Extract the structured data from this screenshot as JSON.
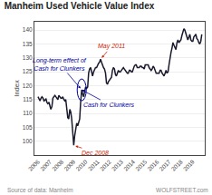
{
  "chart_data": {
    "type": "line",
    "title": "Manheim Used Vehicle Value Index",
    "ylabel": "Index",
    "color": "#1a1a2e",
    "grid": true,
    "xlim": [
      2005.7,
      2020.0
    ],
    "xticks": [
      2006,
      2007,
      2008,
      2009,
      2010,
      2011,
      2012,
      2013,
      2014,
      2015,
      2016,
      2017,
      2018,
      2019
    ],
    "ylim": [
      95,
      143
    ],
    "yticks": [
      100,
      105,
      110,
      115,
      120,
      125,
      130,
      135,
      140
    ],
    "x": [
      2006.0,
      2006.08,
      2006.17,
      2006.25,
      2006.33,
      2006.42,
      2006.5,
      2006.58,
      2006.67,
      2006.75,
      2006.83,
      2006.92,
      2007.0,
      2007.08,
      2007.17,
      2007.25,
      2007.33,
      2007.42,
      2007.5,
      2007.58,
      2007.67,
      2007.75,
      2007.83,
      2007.92,
      2008.0,
      2008.08,
      2008.17,
      2008.25,
      2008.33,
      2008.42,
      2008.5,
      2008.58,
      2008.67,
      2008.75,
      2008.83,
      2008.92,
      2009.0,
      2009.08,
      2009.17,
      2009.25,
      2009.33,
      2009.42,
      2009.5,
      2009.58,
      2009.67,
      2009.75,
      2009.83,
      2009.92,
      2010.0,
      2010.08,
      2010.17,
      2010.25,
      2010.33,
      2010.42,
      2010.5,
      2010.58,
      2010.67,
      2010.75,
      2010.83,
      2010.92,
      2011.0,
      2011.08,
      2011.17,
      2011.25,
      2011.33,
      2011.42,
      2011.5,
      2011.58,
      2011.67,
      2011.75,
      2011.83,
      2011.92,
      2012.0,
      2012.08,
      2012.17,
      2012.25,
      2012.33,
      2012.42,
      2012.5,
      2012.58,
      2012.67,
      2012.75,
      2012.83,
      2012.92,
      2013.0,
      2013.08,
      2013.17,
      2013.25,
      2013.33,
      2013.42,
      2013.5,
      2013.58,
      2013.67,
      2013.75,
      2013.83,
      2013.92,
      2014.0,
      2014.08,
      2014.17,
      2014.25,
      2014.33,
      2014.42,
      2014.5,
      2014.58,
      2014.67,
      2014.75,
      2014.83,
      2014.92,
      2015.0,
      2015.08,
      2015.17,
      2015.25,
      2015.33,
      2015.42,
      2015.5,
      2015.58,
      2015.67,
      2015.75,
      2015.83,
      2015.92,
      2016.0,
      2016.08,
      2016.17,
      2016.25,
      2016.33,
      2016.42,
      2016.5,
      2016.58,
      2016.67,
      2016.75,
      2016.83,
      2016.92,
      2017.0,
      2017.08,
      2017.17,
      2017.25,
      2017.33,
      2017.42,
      2017.5,
      2017.58,
      2017.67,
      2017.75,
      2017.83,
      2017.92,
      2018.0,
      2018.08,
      2018.17,
      2018.25,
      2018.33,
      2018.42,
      2018.5,
      2018.58,
      2018.67,
      2018.75,
      2018.83,
      2018.92,
      2019.0,
      2019.08,
      2019.17,
      2019.25,
      2019.33,
      2019.42,
      2019.5,
      2019.58,
      2019.67,
      2019.75
    ],
    "values": [
      116.0,
      115.0,
      114.5,
      115.5,
      116.0,
      115.5,
      114.5,
      114.8,
      115.2,
      114.0,
      113.5,
      114.0,
      112.5,
      111.5,
      112.5,
      115.5,
      116.0,
      116.5,
      116.0,
      115.5,
      115.0,
      116.5,
      116.0,
      115.5,
      115.5,
      116.0,
      115.0,
      114.5,
      115.0,
      112.0,
      108.5,
      108.0,
      111.5,
      110.5,
      108.0,
      103.0,
      98.5,
      102.0,
      104.5,
      106.5,
      105.5,
      107.0,
      108.0,
      114.0,
      118.5,
      117.0,
      116.0,
      118.0,
      119.5,
      119.0,
      119.5,
      124.5,
      126.0,
      126.5,
      125.0,
      123.5,
      125.0,
      126.0,
      126.5,
      126.5,
      127.5,
      128.0,
      128.5,
      129.5,
      128.5,
      127.0,
      126.5,
      126.0,
      124.5,
      121.0,
      120.5,
      121.5,
      122.0,
      122.5,
      123.0,
      125.5,
      126.5,
      126.0,
      124.0,
      123.5,
      124.5,
      125.5,
      125.0,
      125.0,
      125.5,
      126.0,
      126.5,
      126.0,
      125.5,
      125.0,
      124.5,
      124.5,
      125.5,
      125.5,
      125.0,
      125.0,
      126.5,
      127.0,
      127.5,
      127.5,
      126.5,
      126.5,
      126.5,
      127.0,
      127.0,
      126.5,
      126.5,
      126.0,
      127.5,
      127.5,
      127.5,
      127.5,
      126.5,
      126.0,
      125.5,
      126.0,
      127.0,
      126.5,
      125.5,
      124.5,
      124.5,
      124.5,
      124.5,
      125.5,
      125.5,
      124.5,
      124.0,
      123.5,
      124.5,
      125.5,
      124.5,
      125.0,
      127.5,
      130.0,
      132.0,
      133.5,
      135.5,
      134.5,
      133.5,
      133.0,
      135.5,
      136.5,
      135.5,
      136.0,
      136.5,
      138.0,
      139.5,
      140.5,
      140.0,
      138.5,
      137.5,
      136.5,
      137.5,
      138.5,
      136.5,
      136.0,
      136.0,
      137.5,
      138.0,
      138.5,
      137.0,
      136.5,
      135.5,
      135.0,
      136.0,
      138.5
    ],
    "annotations": [
      {
        "text": "Dec 2008",
        "x": 2009.0,
        "y": 98.5,
        "color": "#cc2200"
      },
      {
        "text": "May 2011",
        "x": 2011.25,
        "y": 129.5,
        "color": "#cc2200"
      },
      {
        "text": "Cash for Clunkers",
        "x": 2009.67,
        "y": 118.5,
        "color": "#000099",
        "marker": "ellipse"
      },
      {
        "text": "Long-term effect of\nCash for Clunkers",
        "x": 2009.67,
        "y": 118.5,
        "color": "#000099"
      }
    ],
    "source": [
      "Source of data: Manheim",
      "WOLFSTREET.com"
    ]
  }
}
